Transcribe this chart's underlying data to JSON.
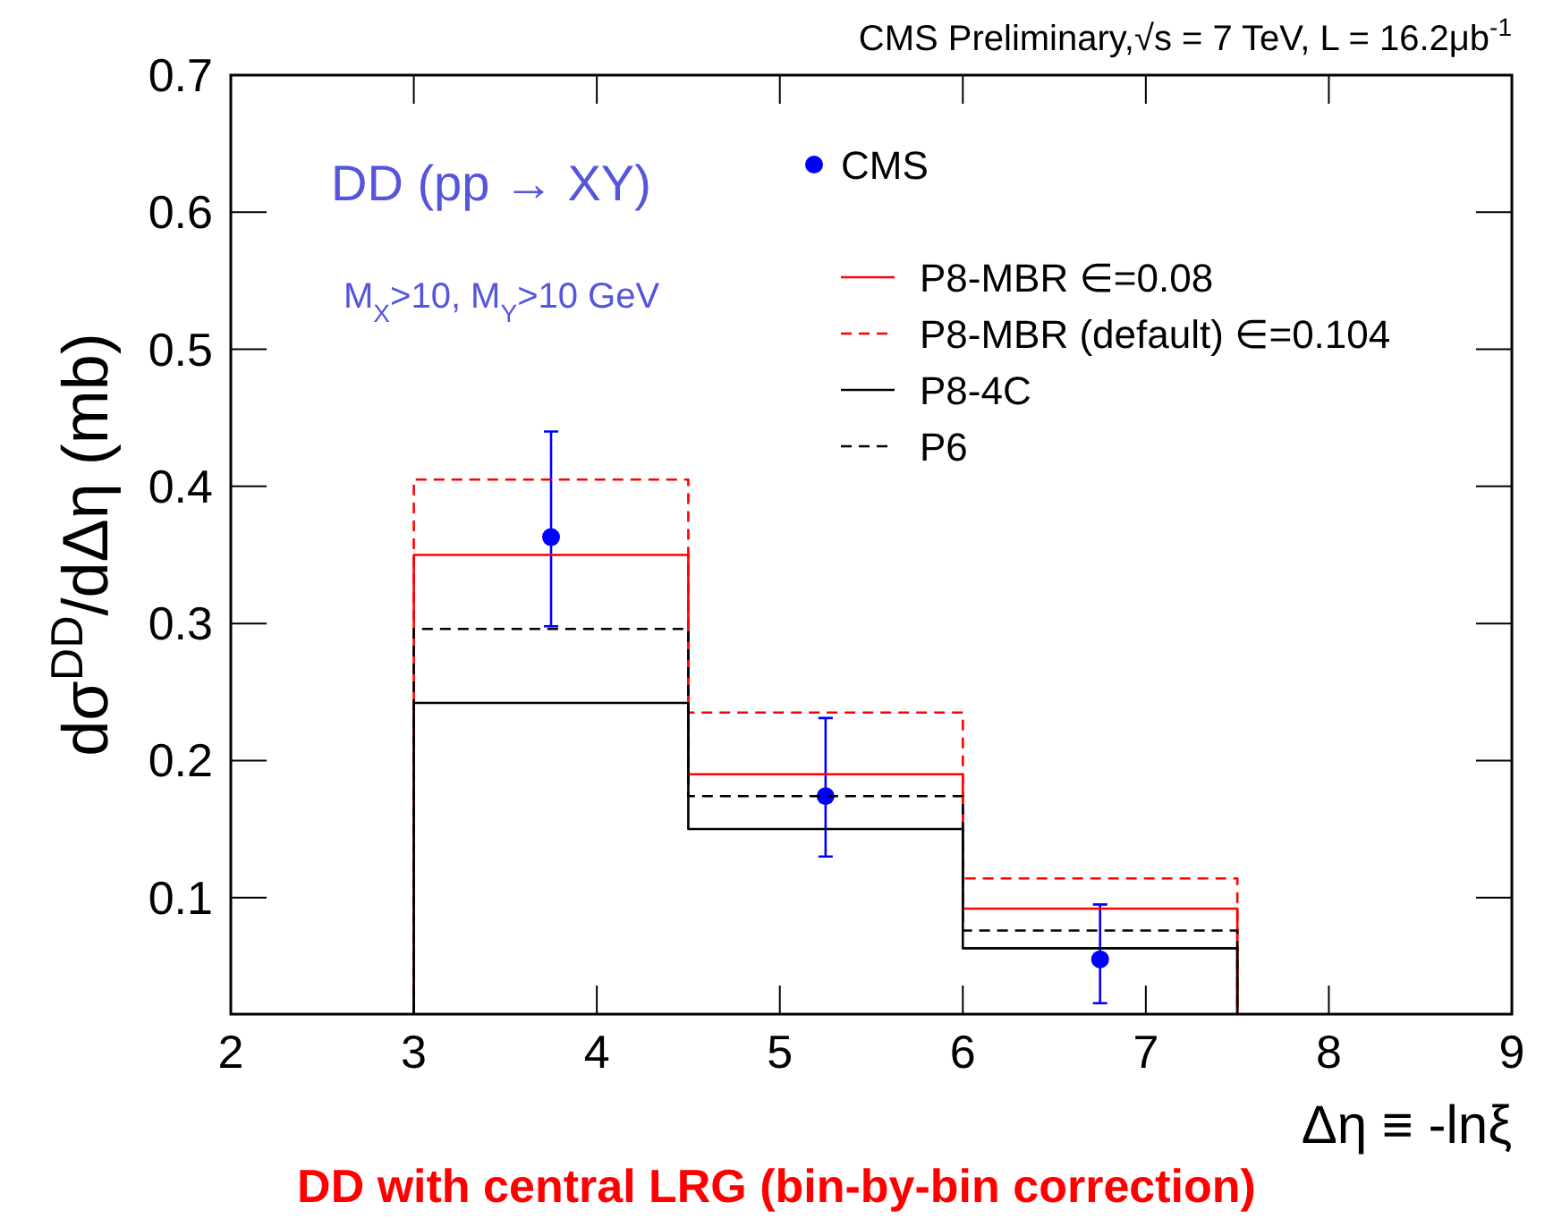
{
  "chart_data": {
    "type": "histogram",
    "title": "CMS Preliminary,√s = 7 TeV, L = 16.2μb$^{-1}$",
    "xlabel": "Δη ≡ -lnξ",
    "ylabel": "dσ$^{DD}$/dΔη (mb)",
    "annotations": [
      "DD (pp → XY)",
      "M$_{X}$>10, M$_{Y}$>10 GeV",
      "DD with central LRG (bin-by-bin correction)"
    ],
    "bins": [
      3,
      4.5,
      6,
      7.5
    ],
    "series": [
      {
        "name": "CMS",
        "type": "scatter",
        "color": "#0000ff",
        "marker": "circle",
        "x": [
          3.75,
          5.25,
          6.75
        ],
        "values": [
          0.363,
          0.174,
          0.055
        ],
        "errors": [
          [
            0.298,
            0.44
          ],
          [
            0.13,
            0.231
          ],
          [
            0.023,
            0.095
          ]
        ]
      },
      {
        "name": "P8-MBR ∈=0.08",
        "color": "#ff0000",
        "line_style": "solid",
        "values": [
          0.35,
          0.19,
          0.092
        ]
      },
      {
        "name": "P8-MBR (default) ∈=0.104",
        "color": "#ff0000",
        "line_style": "dashed",
        "values": [
          0.405,
          0.235,
          0.114
        ]
      },
      {
        "name": "P8-4C",
        "color": "#000000",
        "line_style": "solid",
        "values": [
          0.242,
          0.15,
          0.063
        ]
      },
      {
        "name": "P6",
        "color": "#000000",
        "line_style": "dashed",
        "values": [
          0.296,
          0.174,
          0.076
        ]
      }
    ],
    "xlim": [
      2,
      9
    ],
    "xticks": [
      2,
      3,
      4,
      5,
      6,
      7,
      8,
      9
    ],
    "ylim": [
      0.015,
      0.7
    ],
    "yticks": [
      0.1,
      0.2,
      0.3,
      0.4,
      0.5,
      0.6,
      0.7
    ],
    "legend": "top right"
  }
}
